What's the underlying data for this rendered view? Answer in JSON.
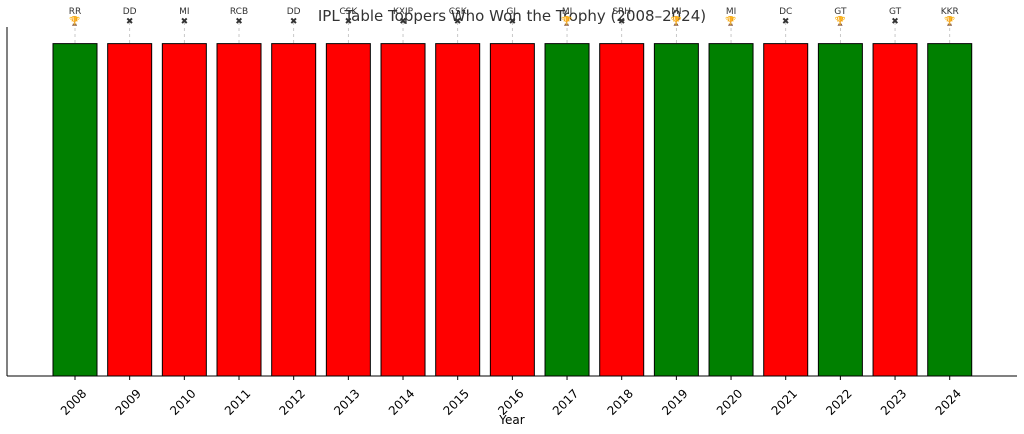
{
  "chart_data": {
    "type": "bar",
    "title": "IPL Table Toppers Who Won the Trophy (2008–2024)",
    "xlabel": "Year",
    "ylabel": "",
    "ylim": [
      0,
      1.05
    ],
    "grid": "vertical dashed",
    "categories": [
      "2008",
      "2009",
      "2010",
      "2011",
      "2012",
      "2013",
      "2014",
      "2015",
      "2016",
      "2017",
      "2018",
      "2019",
      "2020",
      "2021",
      "2022",
      "2023",
      "2024"
    ],
    "values": [
      1,
      1,
      1,
      1,
      1,
      1,
      1,
      1,
      1,
      1,
      1,
      1,
      1,
      1,
      1,
      1,
      1
    ],
    "table_toppers": [
      "RR",
      "DD",
      "MI",
      "RCB",
      "DD",
      "CSK",
      "KXIP",
      "CSK",
      "GL",
      "MI",
      "SRH",
      "MI",
      "MI",
      "DC",
      "GT",
      "GT",
      "KKR"
    ],
    "won_trophy": [
      true,
      false,
      false,
      false,
      false,
      false,
      false,
      false,
      false,
      true,
      false,
      true,
      true,
      false,
      true,
      false,
      true
    ],
    "win_marker": "🏆",
    "loss_marker": "✖",
    "colors": {
      "won": "#008000",
      "lost": "#ff0000"
    }
  }
}
